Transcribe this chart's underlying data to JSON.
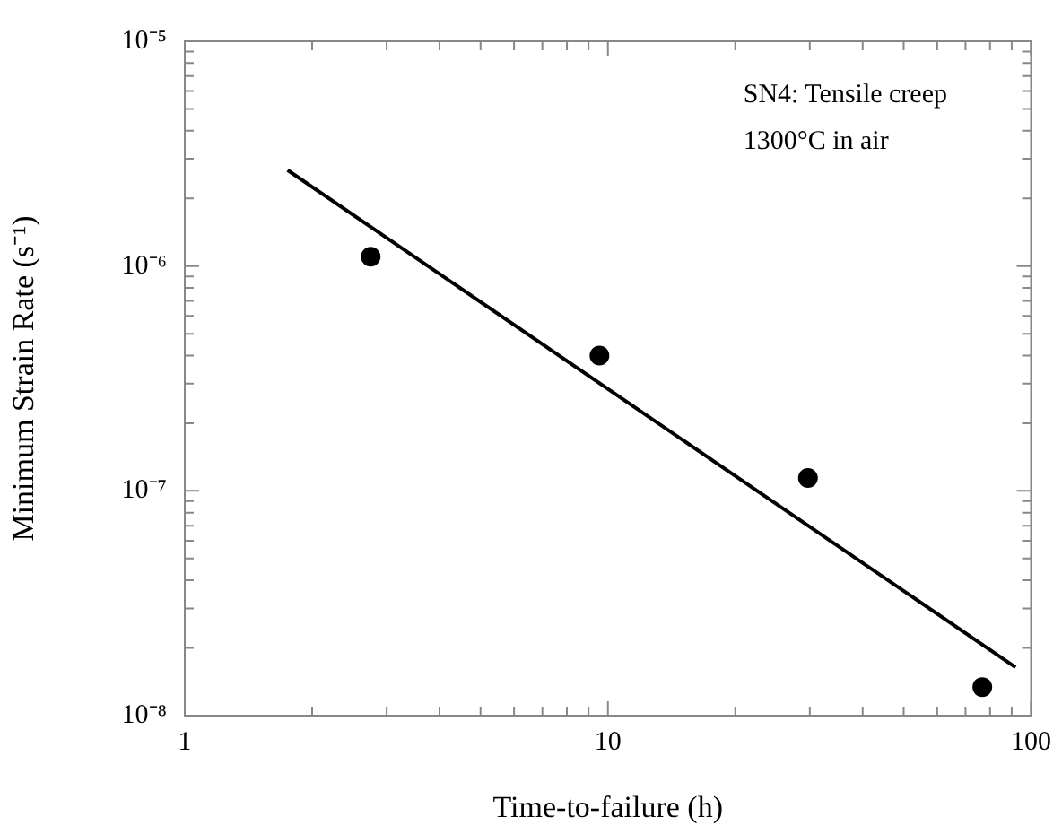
{
  "chart_data": {
    "type": "scatter",
    "xlabel": "Time-to-failure (h)",
    "ylabel": "Minimum Strain Rate (s⁻¹)",
    "annotations": [
      "SN4: Tensile creep",
      "1300°C in air"
    ],
    "log": "xy",
    "grid": false,
    "legend": false,
    "marker": "circle",
    "xlim": [
      1,
      100
    ],
    "ylim": [
      1e-08,
      1e-05
    ],
    "xticks": [
      1,
      {
        "value": 2,
        "label": null
      },
      {
        "value": 3,
        "label": null
      },
      {
        "value": 4,
        "label": null
      },
      {
        "value": 5,
        "label": null
      },
      {
        "value": 6,
        "label": null
      },
      {
        "value": 7,
        "label": null
      },
      {
        "value": 8,
        "label": null
      },
      {
        "value": 9,
        "label": null
      },
      10,
      {
        "value": 20,
        "label": null
      },
      {
        "value": 30,
        "label": null
      },
      {
        "value": 40,
        "label": null
      },
      {
        "value": 50,
        "label": null
      },
      {
        "value": 60,
        "label": null
      },
      {
        "value": 70,
        "label": null
      },
      {
        "value": 80,
        "label": null
      },
      {
        "value": 90,
        "label": null
      },
      100
    ],
    "yticks": [
      {
        "value": 1e-08,
        "label": "10⁻⁸"
      },
      {
        "value": 2e-08,
        "label": null
      },
      {
        "value": 3e-08,
        "label": null
      },
      {
        "value": 4e-08,
        "label": null
      },
      {
        "value": 5e-08,
        "label": null
      },
      {
        "value": 6e-08,
        "label": null
      },
      {
        "value": 7e-08,
        "label": null
      },
      {
        "value": 8e-08,
        "label": null
      },
      {
        "value": 9e-08,
        "label": null
      },
      {
        "value": 1e-07,
        "label": "10⁻⁷"
      },
      {
        "value": 2e-07,
        "label": null
      },
      {
        "value": 3e-07,
        "label": null
      },
      {
        "value": 4e-07,
        "label": null
      },
      {
        "value": 5e-07,
        "label": null
      },
      {
        "value": 6e-07,
        "label": null
      },
      {
        "value": 7e-07,
        "label": null
      },
      {
        "value": 8e-07,
        "label": null
      },
      {
        "value": 9e-07,
        "label": null
      },
      {
        "value": 1e-06,
        "label": "10⁻⁶"
      },
      {
        "value": 2e-06,
        "label": null
      },
      {
        "value": 3e-06,
        "label": null
      },
      {
        "value": 4e-06,
        "label": null
      },
      {
        "value": 5e-06,
        "label": null
      },
      {
        "value": 6e-06,
        "label": null
      },
      {
        "value": 7e-06,
        "label": null
      },
      {
        "value": 8e-06,
        "label": null
      },
      {
        "value": 9e-06,
        "label": null
      },
      {
        "value": 1e-05,
        "label": "10⁻⁵"
      }
    ],
    "series": [
      {
        "color": "#000000",
        "x": [
          2.75,
          9.55,
          29.7,
          76.7
        ],
        "values": [
          1.1e-06,
          4e-07,
          1.14e-07,
          1.34e-08
        ]
      },
      {
        "type": "line",
        "color": "#000000",
        "marker": "none",
        "x": [
          1.75,
          91.9
        ],
        "values": [
          2.67e-06,
          1.64e-08
        ]
      }
    ]
  }
}
